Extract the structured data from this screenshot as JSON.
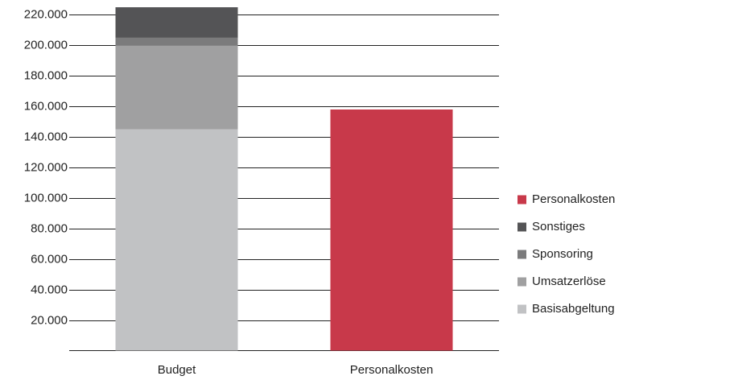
{
  "chart_data": {
    "type": "stacked_bar",
    "categories": [
      "Budget",
      "Personalkosten"
    ],
    "series": [
      {
        "name": "Basisabgeltung",
        "color": "#c1c2c4",
        "values": [
          145000,
          null
        ]
      },
      {
        "name": "Umsatzerlöse",
        "color": "#a0a0a1",
        "values": [
          55000,
          null
        ]
      },
      {
        "name": "Sponsoring",
        "color": "#7b7b7c",
        "values": [
          5000,
          null
        ]
      },
      {
        "name": "Sonstiges",
        "color": "#545456",
        "values": [
          20000,
          null
        ]
      },
      {
        "name": "Personalkosten",
        "color": "#c8394a",
        "values": [
          null,
          158000
        ]
      }
    ],
    "ylim": [
      0,
      225000
    ],
    "yticks": [
      {
        "value": 20000,
        "label": "20.000"
      },
      {
        "value": 40000,
        "label": "40.000"
      },
      {
        "value": 60000,
        "label": "60.000"
      },
      {
        "value": 80000,
        "label": "80.000"
      },
      {
        "value": 100000,
        "label": "100.000"
      },
      {
        "value": 120000,
        "label": "120.000"
      },
      {
        "value": 140000,
        "label": "140.000"
      },
      {
        "value": 160000,
        "label": "160.000"
      },
      {
        "value": 180000,
        "label": "180.000"
      },
      {
        "value": 200000,
        "label": "200.000"
      },
      {
        "value": 220000,
        "label": "220.000"
      }
    ],
    "grid": true,
    "legend": "right"
  }
}
